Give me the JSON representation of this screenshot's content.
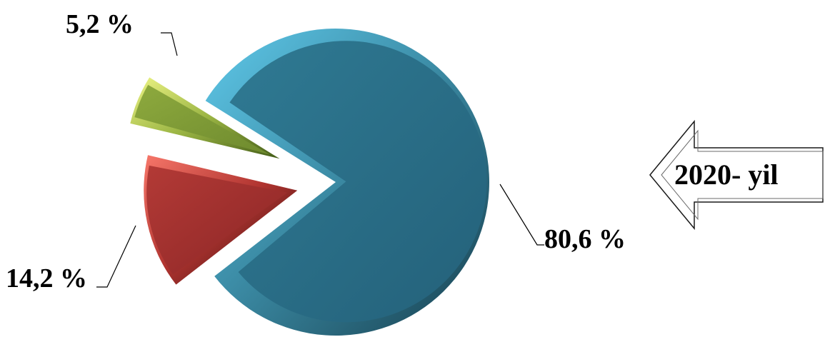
{
  "chart_data": {
    "type": "pie",
    "exploded": true,
    "style": "3d-bevel",
    "slices": [
      {
        "label": "80,6 %",
        "value": 80.6,
        "color": "#2b6f86",
        "highlight": "#57c6e8",
        "shade": "#1d4c5c"
      },
      {
        "label": "14,2 %",
        "value": 14.2,
        "color": "#9e2c2c",
        "highlight": "#f06a5f",
        "shade": "#3d1010"
      },
      {
        "label": "5,2 %",
        "value": 5.2,
        "color": "#7e9a34",
        "highlight": "#e6f27a",
        "shade": "#4d6a1f"
      }
    ]
  },
  "annotation": {
    "text": "2020- yil",
    "shape": "left-arrow"
  }
}
